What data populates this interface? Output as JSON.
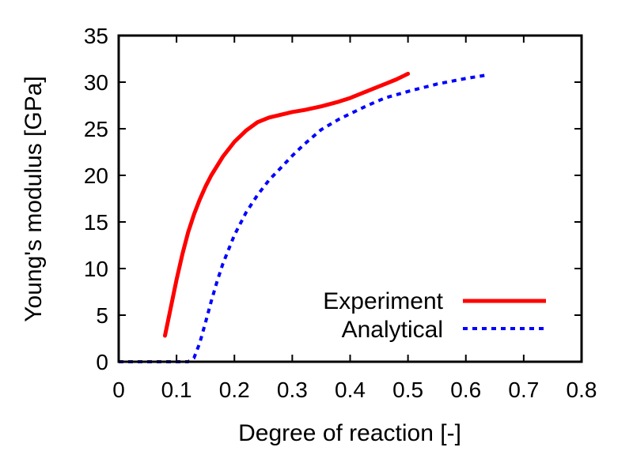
{
  "chart_data": {
    "type": "line",
    "title": "",
    "xlabel": "Degree of reaction [-]",
    "ylabel": "Young's modulus [GPa]",
    "xlim": [
      0,
      0.8
    ],
    "ylim": [
      0,
      35
    ],
    "xticks": [
      0,
      0.1,
      0.2,
      0.3,
      0.4,
      0.5,
      0.6,
      0.7,
      0.8
    ],
    "xtick_labels": [
      "0",
      "0.1",
      "0.2",
      "0.3",
      "0.4",
      "0.5",
      "0.6",
      "0.7",
      "0.8"
    ],
    "yticks": [
      0,
      5,
      10,
      15,
      20,
      25,
      30,
      35
    ],
    "ytick_labels": [
      "0",
      "5",
      "10",
      "15",
      "20",
      "25",
      "30",
      "35"
    ],
    "grid": false,
    "legend_position": "bottom-right",
    "series": [
      {
        "name": "Experiment",
        "color": "#ff0000",
        "style": "solid",
        "x": [
          0.08,
          0.09,
          0.1,
          0.11,
          0.12,
          0.13,
          0.14,
          0.15,
          0.16,
          0.18,
          0.2,
          0.22,
          0.24,
          0.26,
          0.28,
          0.3,
          0.32,
          0.35,
          0.38,
          0.4,
          0.42,
          0.44,
          0.46,
          0.48,
          0.5
        ],
        "y": [
          2.8,
          5.8,
          8.8,
          11.5,
          13.9,
          15.8,
          17.4,
          18.8,
          20.0,
          22.0,
          23.6,
          24.8,
          25.7,
          26.2,
          26.5,
          26.8,
          27.0,
          27.4,
          27.9,
          28.3,
          28.8,
          29.3,
          29.8,
          30.3,
          30.9
        ]
      },
      {
        "name": "Analytical",
        "color": "#0000ff",
        "style": "dotted",
        "x": [
          0.0,
          0.05,
          0.1,
          0.12,
          0.13,
          0.14,
          0.15,
          0.16,
          0.17,
          0.18,
          0.2,
          0.22,
          0.24,
          0.26,
          0.28,
          0.3,
          0.32,
          0.35,
          0.38,
          0.4,
          0.43,
          0.46,
          0.5,
          0.55,
          0.6,
          0.64
        ],
        "y": [
          0.0,
          0.0,
          0.0,
          0.0,
          0.4,
          2.0,
          4.2,
          6.5,
          8.6,
          10.5,
          13.6,
          16.0,
          17.9,
          19.5,
          20.8,
          22.1,
          23.3,
          24.9,
          26.0,
          26.6,
          27.5,
          28.3,
          29.0,
          29.8,
          30.4,
          30.8
        ]
      }
    ]
  }
}
